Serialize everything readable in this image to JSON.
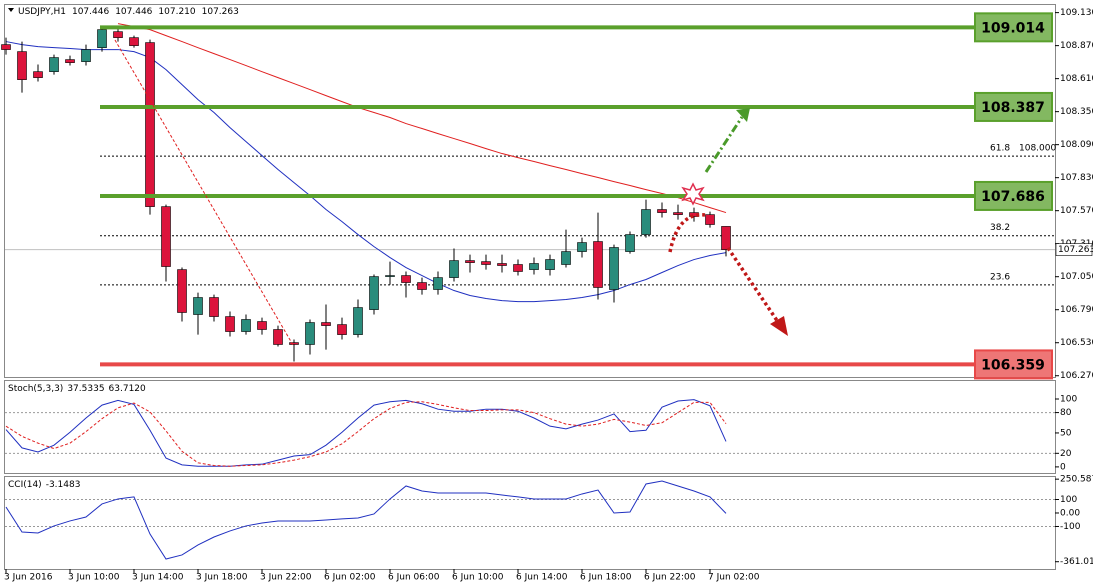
{
  "chart_data": {
    "type": "candlestick",
    "symbol": "USDJPY,H1",
    "header_values": [
      107.446,
      107.446,
      {
        "value": 107.21,
        "label": "107.210"
      },
      107.263
    ],
    "categories": [
      "3 Jun 2016",
      null,
      null,
      null,
      "3 Jun 10:00",
      null,
      null,
      null,
      "3 Jun 14:00",
      null,
      null,
      null,
      "3 Jun 18:00",
      null,
      null,
      null,
      "3 Jun 22:00",
      null,
      null,
      null,
      "6 Jun 02:00",
      null,
      null,
      null,
      "6 Jun 06:00",
      null,
      null,
      null,
      "6 Jun 10:00",
      null,
      null,
      null,
      "6 Jun 14:00",
      null,
      null,
      null,
      "6 Jun 18:00",
      null,
      null,
      null,
      "6 Jun 22:00",
      null,
      null,
      null,
      "7 Jun 02:00",
      null
    ],
    "candles": {
      "open": [
        108.878,
        108.823,
        108.665,
        108.665,
        108.76,
        108.744,
        108.854,
        108.98,
        108.933,
        108.894,
        107.602,
        107.106,
        106.752,
        106.886,
        106.736,
        106.618,
        106.697,
        106.634,
        106.531,
        106.516,
        106.689,
        106.673,
        106.594,
        106.791,
        107.051,
        107.059,
        107.004,
        106.949,
        107.043,
        107.177,
        107.169,
        107.154,
        107.146,
        107.106,
        107.106,
        107.146,
        107.248,
        107.327,
        106.949,
        107.248,
        107.382,
        107.579,
        107.555,
        107.555,
        107.539,
        107.446
      ],
      "high": [
        108.933,
        108.902,
        108.721,
        108.799,
        108.791,
        108.878,
        109.02,
        109.012,
        108.949,
        108.917,
        107.618,
        107.122,
        106.925,
        106.909,
        106.776,
        106.752,
        106.728,
        106.665,
        106.555,
        106.713,
        106.831,
        106.728,
        106.87,
        107.067,
        107.169,
        107.091,
        107.043,
        107.091,
        107.272,
        107.224,
        107.224,
        107.224,
        107.185,
        107.201,
        107.224,
        107.421,
        107.358,
        107.555,
        107.303,
        107.406,
        107.657,
        107.634,
        107.618,
        107.594,
        107.563,
        107.446
      ],
      "low": [
        108.799,
        108.5,
        108.587,
        108.642,
        108.713,
        108.713,
        108.823,
        108.902,
        108.854,
        107.539,
        107.012,
        106.697,
        106.594,
        106.697,
        106.579,
        106.594,
        106.594,
        106.5,
        106.382,
        106.437,
        106.476,
        106.555,
        106.571,
        106.752,
        106.988,
        106.886,
        106.909,
        106.909,
        107.012,
        107.083,
        107.106,
        107.083,
        107.059,
        107.067,
        107.059,
        107.122,
        107.201,
        106.87,
        106.847,
        107.232,
        107.358,
        107.516,
        107.5,
        107.484,
        107.437,
        107.21
      ],
      "close": [
        108.839,
        108.602,
        108.618,
        108.776,
        108.736,
        108.839,
        108.996,
        108.933,
        108.87,
        107.602,
        107.13,
        106.768,
        106.886,
        106.736,
        106.618,
        106.713,
        106.634,
        106.516,
        106.516,
        106.689,
        106.665,
        106.594,
        106.807,
        107.051,
        107.059,
        107.004,
        106.949,
        107.043,
        107.177,
        107.161,
        107.146,
        107.138,
        107.091,
        107.154,
        107.185,
        107.248,
        107.319,
        106.965,
        107.28,
        107.382,
        107.579,
        107.555,
        107.539,
        107.524,
        107.461,
        107.263
      ]
    },
    "up_color": "#2a8c7c",
    "down_color": "#dc143c",
    "overlays": [
      {
        "color": "#e02020",
        "values": [
          null,
          null,
          null,
          null,
          null,
          null,
          null,
          109.043,
          109.02,
          108.996,
          108.949,
          108.902,
          108.854,
          108.807,
          108.76,
          108.713,
          108.665,
          108.618,
          108.571,
          108.524,
          108.476,
          108.429,
          108.382,
          108.343,
          108.304,
          108.256,
          108.217,
          108.177,
          108.138,
          108.099,
          108.059,
          108.02,
          107.988,
          107.957,
          107.925,
          107.894,
          107.862,
          107.831,
          107.799,
          107.768,
          107.736,
          107.705,
          107.673,
          107.634,
          107.594,
          107.555
        ]
      },
      {
        "color": "#2030c0",
        "values": [
          108.902,
          108.878,
          108.862,
          108.854,
          108.847,
          108.839,
          108.839,
          108.839,
          108.823,
          108.776,
          108.681,
          108.563,
          108.445,
          108.343,
          108.224,
          108.114,
          108.004,
          107.894,
          107.791,
          107.689,
          107.579,
          107.484,
          107.382,
          107.287,
          107.201,
          107.122,
          107.059,
          106.996,
          106.941,
          106.902,
          106.878,
          106.862,
          106.854,
          106.854,
          106.862,
          106.87,
          106.886,
          106.909,
          106.941,
          106.988,
          107.028,
          107.083,
          107.138,
          107.185,
          107.217,
          107.24
        ]
      }
    ],
    "ylim": [
      106.26,
      109.19
    ],
    "yticks": [
      {
        "value": 109.13,
        "label": "109.130"
      },
      {
        "value": 108.87,
        "label": "108.870"
      },
      {
        "value": 108.61,
        "label": "108.610"
      },
      {
        "value": 108.35,
        "label": "108.350"
      },
      {
        "value": 108.09,
        "label": "108.090"
      },
      {
        "value": 107.83,
        "label": "107.830"
      },
      {
        "value": 107.57,
        "label": "107.570"
      },
      {
        "value": 107.31,
        "label": "107.310"
      },
      {
        "value": 107.05,
        "label": "107.050"
      },
      {
        "value": 106.79,
        "label": "106.790"
      },
      {
        "value": 106.53,
        "label": "106.530"
      },
      {
        "value": 106.27,
        "label": "106.270"
      }
    ],
    "levels": [
      {
        "value": 109.014,
        "color": "#5aa02c"
      },
      {
        "value": 108.387,
        "color": "#5aa02c"
      },
      {
        "value": 107.686,
        "color": "#5aa02c"
      },
      {
        "value": 106.359,
        "color": "#e84848"
      }
    ],
    "fib_levels": [
      {
        "ratio": 61.8,
        "value": 108,
        "label": "108.000"
      },
      {
        "ratio": 38.2,
        "value": 107.373
      },
      {
        "ratio": 23.6,
        "value": 106.986
      }
    ],
    "indicators": [
      {
        "title": "Stoch(5,3,3)",
        "readings": [
          37.5335,
          {
            "value": 63.712,
            "label": "63.7120"
          }
        ],
        "ylim": [
          -9,
          128
        ],
        "yticks": [
          100,
          80,
          50,
          20,
          0
        ],
        "levels": [
          80,
          20
        ],
        "series": [
          {
            "color": "#2030c0",
            "dashed": false,
            "values": [
              55,
              28,
              22,
              32,
              51,
              72,
              91,
              98,
              92,
              54,
              13,
              3,
              1,
              1,
              1,
              3,
              4,
              10,
              16,
              18,
              32,
              51,
              72,
              91,
              96,
              98,
              93,
              85,
              82,
              82,
              85,
              85,
              82,
              72,
              60,
              56,
              63,
              69,
              78,
              52,
              54,
              88,
              97,
              99,
              90,
              37.5335
            ]
          },
          {
            "color": "#e02020",
            "dashed": true,
            "values": [
              60,
              45,
              35,
              27,
              35,
              52,
              71,
              87,
              94,
              81,
              53,
              23,
              6,
              2,
              1,
              2,
              3,
              6,
              10,
              15,
              22,
              34,
              52,
              71,
              86,
              95,
              96,
              92,
              87,
              83,
              83,
              84,
              84,
              80,
              71,
              63,
              60,
              63,
              70,
              66,
              61,
              65,
              80,
              95,
              95,
              63.712
            ]
          }
        ]
      },
      {
        "title": "CCI(14)",
        "readings": [
          -3.1483
        ],
        "ylim": [
          -415,
          274
        ],
        "yticks": [
          250.5871,
          100,
          {
            "value": 0,
            "label": "0.00"
          },
          -100,
          -361.0154
        ],
        "levels": [
          100,
          -100
        ],
        "series": [
          {
            "color": "#2030c0",
            "dashed": false,
            "values": [
              44,
              -141,
              -148,
              -96,
              -59,
              -30,
              67,
              104,
              119,
              -156,
              -341,
              -311,
              -237,
              -178,
              -133,
              -96,
              -74,
              -59,
              -59,
              -59,
              -52,
              -44,
              -37,
              -7,
              104,
              200,
              163,
              148,
              148,
              148,
              148,
              133,
              119,
              104,
              104,
              104,
              141,
              170,
              0,
              7,
              215,
              237,
              200,
              163,
              119,
              -3.1483
            ]
          }
        ]
      }
    ]
  }
}
